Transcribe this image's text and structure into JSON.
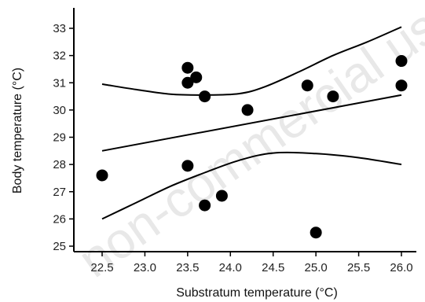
{
  "watermark": {
    "text": "non-commercial use"
  },
  "chart_data": {
    "type": "scatter",
    "title": "",
    "xlabel": "Substratum temperature (°C)",
    "ylabel": "Body temperature (°C)",
    "xlim": [
      22.2,
      26.2
    ],
    "ylim": [
      24.8,
      33.6
    ],
    "x_ticks": [
      22.5,
      23.0,
      23.5,
      24.0,
      24.5,
      25.0,
      25.5,
      26.0
    ],
    "x_tick_labels": [
      "22.5",
      "23.0",
      "23.5",
      "24.0",
      "24.5",
      "25.0",
      "25.5",
      "26.0"
    ],
    "y_ticks": [
      25,
      26,
      27,
      28,
      29,
      30,
      31,
      32,
      33
    ],
    "y_tick_labels": [
      "25",
      "26",
      "27",
      "28",
      "29",
      "30",
      "31",
      "32",
      "33"
    ],
    "grid": false,
    "point_color": "#000000",
    "line_color": "#000000",
    "points": [
      {
        "x": 22.5,
        "y": 27.6
      },
      {
        "x": 23.5,
        "y": 31.55
      },
      {
        "x": 23.5,
        "y": 31.0
      },
      {
        "x": 23.6,
        "y": 31.2
      },
      {
        "x": 23.7,
        "y": 30.5
      },
      {
        "x": 23.5,
        "y": 27.95
      },
      {
        "x": 23.7,
        "y": 26.5
      },
      {
        "x": 23.9,
        "y": 26.85
      },
      {
        "x": 24.2,
        "y": 30.0
      },
      {
        "x": 24.9,
        "y": 30.9
      },
      {
        "x": 25.0,
        "y": 25.5
      },
      {
        "x": 25.2,
        "y": 30.5
      },
      {
        "x": 26.0,
        "y": 31.8
      },
      {
        "x": 26.0,
        "y": 30.9
      }
    ],
    "fit_line": [
      {
        "x": 22.5,
        "y": 28.5
      },
      {
        "x": 26.0,
        "y": 30.55
      }
    ],
    "upper_band": [
      {
        "x": 22.5,
        "y": 30.95
      },
      {
        "x": 22.9,
        "y": 30.75
      },
      {
        "x": 23.3,
        "y": 30.58
      },
      {
        "x": 23.7,
        "y": 30.55
      },
      {
        "x": 24.1,
        "y": 30.6
      },
      {
        "x": 24.4,
        "y": 30.85
      },
      {
        "x": 24.8,
        "y": 31.4
      },
      {
        "x": 25.2,
        "y": 32.0
      },
      {
        "x": 25.6,
        "y": 32.5
      },
      {
        "x": 26.0,
        "y": 33.05
      }
    ],
    "lower_band": [
      {
        "x": 22.5,
        "y": 26.0
      },
      {
        "x": 22.9,
        "y": 26.6
      },
      {
        "x": 23.3,
        "y": 27.2
      },
      {
        "x": 23.7,
        "y": 27.7
      },
      {
        "x": 24.1,
        "y": 28.15
      },
      {
        "x": 24.5,
        "y": 28.42
      },
      {
        "x": 25.0,
        "y": 28.4
      },
      {
        "x": 25.5,
        "y": 28.25
      },
      {
        "x": 26.0,
        "y": 28.0
      }
    ]
  }
}
